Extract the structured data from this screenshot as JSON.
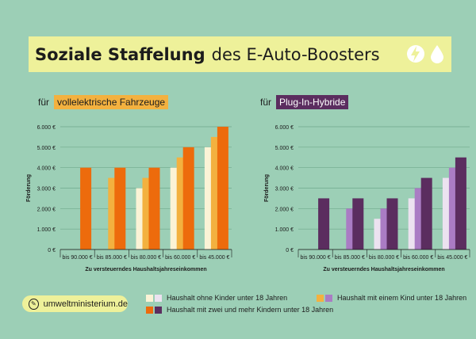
{
  "title": {
    "bold": "Soziale Staffelung",
    "rest": "des E-Auto-Boosters"
  },
  "icons": [
    "lightning-icon",
    "drop-icon"
  ],
  "chart_data": [
    {
      "type": "bar",
      "prefix": "für",
      "subtitle": "vollelektrische Fahrzeuge",
      "ylabel": "Förderung",
      "xlabel": "Zu versteuerndes Haushaltsjahreseinkommen",
      "ylim": [
        0,
        6000
      ],
      "yticks": [
        "0 €",
        "1.000 €",
        "2.000 €",
        "3.000 €",
        "4.000 €",
        "5.000 €",
        "6.000 €"
      ],
      "categories": [
        "bis 90.000 €",
        "bis 85.000 €",
        "bis 80.000 €",
        "bis 60.000 €",
        "bis 45.000 €"
      ],
      "series": [
        {
          "name": "Haushalt ohne Kinder unter 18 Jahren",
          "color": "#fbf3d6",
          "values": [
            null,
            null,
            3000,
            4000,
            5000
          ]
        },
        {
          "name": "Haushalt mit einem Kind unter 18 Jahren",
          "color": "#f3b13f",
          "values": [
            null,
            3500,
            3500,
            4500,
            5500
          ]
        },
        {
          "name": "Haushalt mit zwei und mehr Kindern unter 18 Jahren",
          "color": "#ed6b0c",
          "values": [
            4000,
            4000,
            4000,
            5000,
            6000
          ]
        }
      ],
      "grid": true
    },
    {
      "type": "bar",
      "prefix": "für",
      "subtitle": "Plug-In-Hybride",
      "ylabel": "Förderung",
      "xlabel": "Zu versteuerndes Haushaltsjahreseinkommen",
      "ylim": [
        0,
        6000
      ],
      "yticks": [
        "0 €",
        "1.000 €",
        "2.000 €",
        "3.000 €",
        "4.000 €",
        "5.000 €",
        "6.000 €"
      ],
      "categories": [
        "bis 90.000 €",
        "bis 85.000 €",
        "bis 80.000 €",
        "bis 60.000 €",
        "bis 45.000 €"
      ],
      "series": [
        {
          "name": "Haushalt ohne Kinder unter 18 Jahren",
          "color": "#ece2f0",
          "values": [
            null,
            null,
            1500,
            2500,
            3500
          ]
        },
        {
          "name": "Haushalt mit einem Kind unter 18 Jahren",
          "color": "#aa7cc4",
          "values": [
            null,
            2000,
            2000,
            3000,
            4000
          ]
        },
        {
          "name": "Haushalt mit zwei und mehr Kindern unter 18 Jahren",
          "color": "#5b2d5f",
          "values": [
            2500,
            2500,
            2500,
            3500,
            4500
          ]
        }
      ],
      "grid": true
    }
  ],
  "legend": [
    {
      "label": "Haushalt ohne Kinder unter 18 Jahren",
      "colors": [
        "#fbf3d6",
        "#ece2f0"
      ]
    },
    {
      "label": "Haushalt mit einem Kind unter 18 Jahren",
      "colors": [
        "#f3b13f",
        "#aa7cc4"
      ]
    },
    {
      "label": "Haushalt mit zwei und mehr Kindern unter 18 Jahren",
      "colors": [
        "#ed6b0c",
        "#5b2d5f"
      ]
    }
  ],
  "footer": {
    "url": "umweltministerium.de"
  }
}
